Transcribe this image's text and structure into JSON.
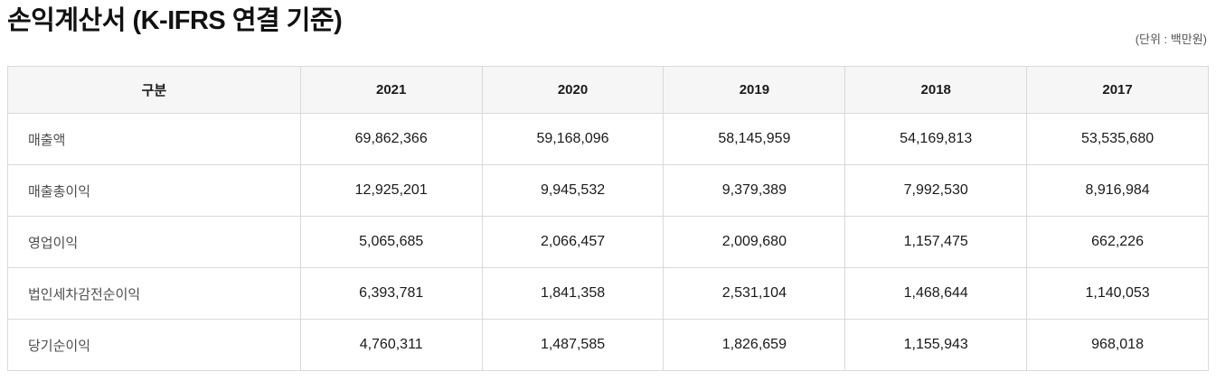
{
  "page": {
    "title": "손익계산서 (K-IFRS 연결 기준)",
    "unit_note": "(단위 : 백만원)"
  },
  "colors": {
    "header_bg": "#f6f6f6",
    "border": "#d9d9d9",
    "title_text": "#111111",
    "label_text": "#4d4d4d",
    "value_text": "#1a1a1a",
    "unit_text": "#555555"
  },
  "chart_data": {
    "type": "table",
    "title": "손익계산서 (K-IFRS 연결 기준)",
    "unit": "백만원",
    "columns": [
      "구분",
      "2021",
      "2020",
      "2019",
      "2018",
      "2017"
    ],
    "rows": [
      {
        "label": "매출액",
        "values": [
          "69,862,366",
          "59,168,096",
          "58,145,959",
          "54,169,813",
          "53,535,680"
        ]
      },
      {
        "label": "매출총이익",
        "values": [
          "12,925,201",
          "9,945,532",
          "9,379,389",
          "7,992,530",
          "8,916,984"
        ]
      },
      {
        "label": "영업이익",
        "values": [
          "5,065,685",
          "2,066,457",
          "2,009,680",
          "1,157,475",
          "662,226"
        ]
      },
      {
        "label": "법인세차감전순이익",
        "values": [
          "6,393,781",
          "1,841,358",
          "2,531,104",
          "1,468,644",
          "1,140,053"
        ]
      },
      {
        "label": "당기순이익",
        "values": [
          "4,760,311",
          "1,487,585",
          "1,826,659",
          "1,155,943",
          "968,018"
        ]
      }
    ]
  }
}
